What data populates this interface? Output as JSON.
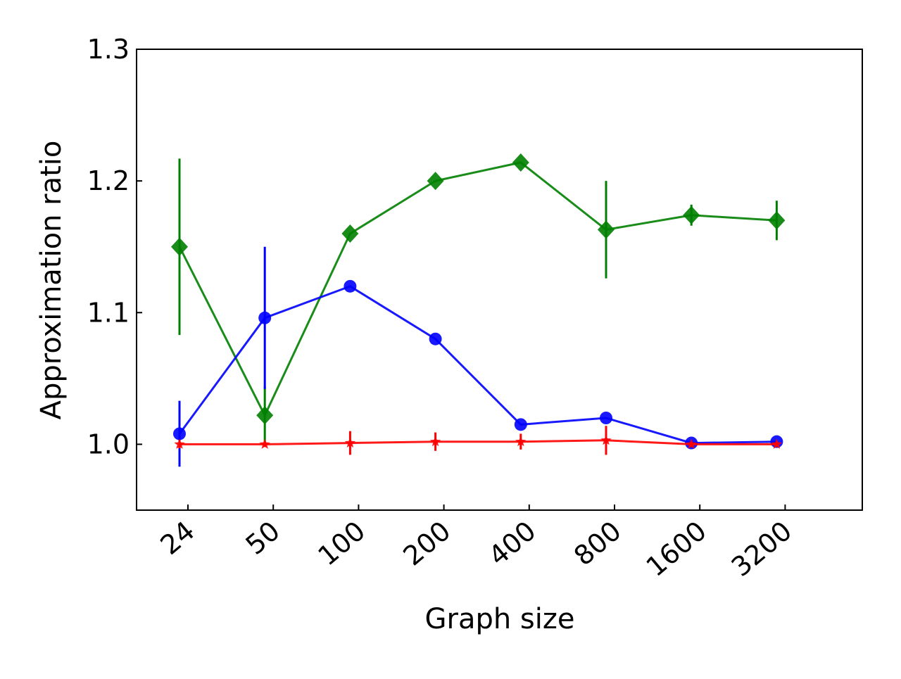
{
  "chart_data": {
    "type": "line",
    "title": "",
    "xlabel": "Graph size",
    "ylabel": "Approximation ratio",
    "categories": [
      "24",
      "50",
      "100",
      "200",
      "400",
      "800",
      "1600",
      "3200"
    ],
    "ylim": [
      0.95,
      1.3
    ],
    "yticks": [
      "1.0",
      "1.1",
      "1.2",
      "1.3"
    ],
    "grid": false,
    "legend": "none",
    "series": [
      {
        "color": "#008000",
        "marker": "diamond",
        "values": [
          1.15,
          1.022,
          1.16,
          1.2,
          1.214,
          1.163,
          1.174,
          1.17
        ],
        "errors": [
          0.067,
          0.022,
          0.0,
          0.0,
          0.0,
          0.037,
          0.008,
          0.015
        ]
      },
      {
        "color": "#0000ff",
        "marker": "circle",
        "values": [
          1.008,
          1.096,
          1.12,
          1.08,
          1.015,
          1.02,
          1.001,
          1.002
        ],
        "errors": [
          0.025,
          0.054,
          0.0,
          0.0,
          0.0,
          0.0,
          0.0,
          0.0
        ]
      },
      {
        "color": "#ff0000",
        "marker": "star",
        "values": [
          1.0,
          1.0,
          1.001,
          1.002,
          1.002,
          1.003,
          1.0,
          1.0
        ],
        "errors": [
          0.003,
          0.002,
          0.009,
          0.007,
          0.006,
          0.011,
          0.002,
          0.002
        ]
      }
    ]
  }
}
